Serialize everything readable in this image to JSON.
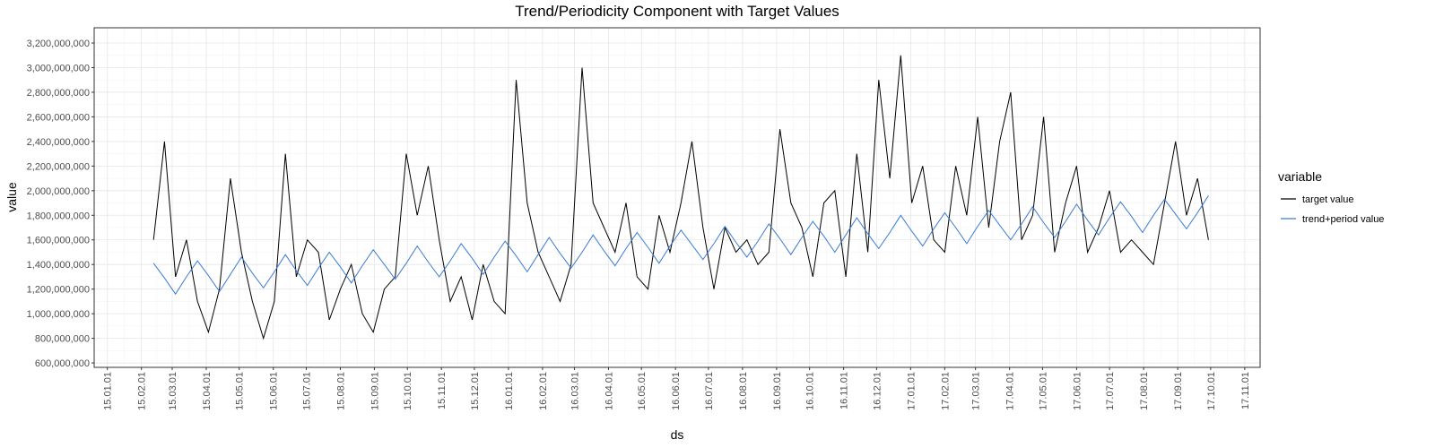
{
  "chart_data": {
    "type": "line",
    "title": "Trend/Periodicity Component with Target Values",
    "x_label": "ds",
    "y_label": "value",
    "legend_title": "variable",
    "legend": "right",
    "grid": true,
    "x": [
      "2015-02-12",
      "2015-02-22",
      "2015-03-04",
      "2015-03-14",
      "2015-03-24",
      "2015-04-03",
      "2015-04-13",
      "2015-04-23",
      "2015-05-03",
      "2015-05-13",
      "2015-05-23",
      "2015-06-02",
      "2015-06-12",
      "2015-06-22",
      "2015-07-02",
      "2015-07-12",
      "2015-07-22",
      "2015-08-01",
      "2015-08-11",
      "2015-08-21",
      "2015-08-31",
      "2015-09-10",
      "2015-09-20",
      "2015-09-30",
      "2015-10-10",
      "2015-10-20",
      "2015-10-30",
      "2015-11-09",
      "2015-11-19",
      "2015-11-29",
      "2015-12-09",
      "2015-12-19",
      "2015-12-29",
      "2016-01-08",
      "2016-01-18",
      "2016-01-28",
      "2016-02-07",
      "2016-02-17",
      "2016-02-27",
      "2016-03-08",
      "2016-03-18",
      "2016-03-28",
      "2016-04-07",
      "2016-04-17",
      "2016-04-27",
      "2016-05-07",
      "2016-05-17",
      "2016-05-27",
      "2016-06-06",
      "2016-06-16",
      "2016-06-26",
      "2016-07-06",
      "2016-07-16",
      "2016-07-26",
      "2016-08-05",
      "2016-08-15",
      "2016-08-25",
      "2016-09-04",
      "2016-09-14",
      "2016-09-24",
      "2016-10-04",
      "2016-10-14",
      "2016-10-24",
      "2016-11-03",
      "2016-11-13",
      "2016-11-23",
      "2016-12-03",
      "2016-12-13",
      "2016-12-23",
      "2017-01-02",
      "2017-01-12",
      "2017-01-22",
      "2017-02-01",
      "2017-02-11",
      "2017-02-21",
      "2017-03-03",
      "2017-03-13",
      "2017-03-23",
      "2017-04-02",
      "2017-04-12",
      "2017-04-22",
      "2017-05-02",
      "2017-05-12",
      "2017-05-22",
      "2017-06-01",
      "2017-06-11",
      "2017-06-21",
      "2017-07-01",
      "2017-07-11",
      "2017-07-21",
      "2017-07-31",
      "2017-08-10",
      "2017-08-20",
      "2017-08-30",
      "2017-09-09",
      "2017-09-19",
      "2017-09-29"
    ],
    "series": [
      {
        "name": "target value",
        "color": "#000000",
        "values": [
          1600000000,
          2400000000,
          1300000000,
          1600000000,
          1100000000,
          850000000,
          1200000000,
          2100000000,
          1500000000,
          1100000000,
          800000000,
          1100000000,
          2300000000,
          1300000000,
          1600000000,
          1500000000,
          950000000,
          1200000000,
          1400000000,
          1000000000,
          850000000,
          1200000000,
          1300000000,
          2300000000,
          1800000000,
          2200000000,
          1600000000,
          1100000000,
          1300000000,
          950000000,
          1400000000,
          1100000000,
          1000000000,
          2900000000,
          1900000000,
          1500000000,
          1300000000,
          1100000000,
          1400000000,
          3000000000,
          1900000000,
          1700000000,
          1500000000,
          1900000000,
          1300000000,
          1200000000,
          1800000000,
          1500000000,
          1900000000,
          2400000000,
          1700000000,
          1200000000,
          1700000000,
          1500000000,
          1600000000,
          1400000000,
          1500000000,
          2500000000,
          1900000000,
          1700000000,
          1300000000,
          1900000000,
          2000000000,
          1300000000,
          2300000000,
          1500000000,
          2900000000,
          2100000000,
          3100000000,
          1900000000,
          2200000000,
          1600000000,
          1500000000,
          2200000000,
          1800000000,
          2600000000,
          1700000000,
          2400000000,
          2800000000,
          1600000000,
          1800000000,
          2600000000,
          1500000000,
          1900000000,
          2200000000,
          1500000000,
          1700000000,
          2000000000,
          1500000000,
          1600000000,
          1500000000,
          1400000000,
          1900000000,
          2400000000,
          1800000000,
          2100000000,
          1600000000
        ]
      },
      {
        "name": "trend+period value",
        "color": "#3a7bd5",
        "values": [
          1410000000,
          1290000000,
          1160000000,
          1300000000,
          1430000000,
          1310000000,
          1180000000,
          1320000000,
          1460000000,
          1330000000,
          1210000000,
          1340000000,
          1480000000,
          1350000000,
          1230000000,
          1370000000,
          1500000000,
          1380000000,
          1250000000,
          1390000000,
          1520000000,
          1400000000,
          1280000000,
          1410000000,
          1550000000,
          1420000000,
          1300000000,
          1430000000,
          1570000000,
          1450000000,
          1320000000,
          1460000000,
          1590000000,
          1470000000,
          1340000000,
          1480000000,
          1620000000,
          1490000000,
          1370000000,
          1500000000,
          1640000000,
          1510000000,
          1390000000,
          1530000000,
          1660000000,
          1540000000,
          1410000000,
          1550000000,
          1680000000,
          1560000000,
          1440000000,
          1570000000,
          1710000000,
          1580000000,
          1460000000,
          1590000000,
          1730000000,
          1610000000,
          1480000000,
          1620000000,
          1750000000,
          1630000000,
          1500000000,
          1640000000,
          1780000000,
          1650000000,
          1530000000,
          1660000000,
          1800000000,
          1670000000,
          1550000000,
          1690000000,
          1820000000,
          1700000000,
          1570000000,
          1710000000,
          1840000000,
          1720000000,
          1600000000,
          1730000000,
          1870000000,
          1740000000,
          1620000000,
          1750000000,
          1890000000,
          1760000000,
          1640000000,
          1780000000,
          1910000000,
          1790000000,
          1660000000,
          1800000000,
          1930000000,
          1810000000,
          1690000000,
          1820000000,
          1960000000
        ]
      }
    ],
    "xlim": [
      "2014-12-20",
      "2017-11-15"
    ],
    "xticks": [
      {
        "value": "2015-01-01",
        "label": "15.01.01"
      },
      {
        "value": "2015-02-01",
        "label": "15.02.01"
      },
      {
        "value": "2015-03-01",
        "label": "15.03.01"
      },
      {
        "value": "2015-04-01",
        "label": "15.04.01"
      },
      {
        "value": "2015-05-01",
        "label": "15.05.01"
      },
      {
        "value": "2015-06-01",
        "label": "15.06.01"
      },
      {
        "value": "2015-07-01",
        "label": "15.07.01"
      },
      {
        "value": "2015-08-01",
        "label": "15.08.01"
      },
      {
        "value": "2015-09-01",
        "label": "15.09.01"
      },
      {
        "value": "2015-10-01",
        "label": "15.10.01"
      },
      {
        "value": "2015-11-01",
        "label": "15.11.01"
      },
      {
        "value": "2015-12-01",
        "label": "15.12.01"
      },
      {
        "value": "2016-01-01",
        "label": "16.01.01"
      },
      {
        "value": "2016-02-01",
        "label": "16.02.01"
      },
      {
        "value": "2016-03-01",
        "label": "16.03.01"
      },
      {
        "value": "2016-04-01",
        "label": "16.04.01"
      },
      {
        "value": "2016-05-01",
        "label": "16.05.01"
      },
      {
        "value": "2016-06-01",
        "label": "16.06.01"
      },
      {
        "value": "2016-07-01",
        "label": "16.07.01"
      },
      {
        "value": "2016-08-01",
        "label": "16.08.01"
      },
      {
        "value": "2016-09-01",
        "label": "16.09.01"
      },
      {
        "value": "2016-10-01",
        "label": "16.10.01"
      },
      {
        "value": "2016-11-01",
        "label": "16.11.01"
      },
      {
        "value": "2016-12-01",
        "label": "16.12.01"
      },
      {
        "value": "2017-01-01",
        "label": "17.01.01"
      },
      {
        "value": "2017-02-01",
        "label": "17.02.01"
      },
      {
        "value": "2017-03-01",
        "label": "17.03.01"
      },
      {
        "value": "2017-04-01",
        "label": "17.04.01"
      },
      {
        "value": "2017-05-01",
        "label": "17.05.01"
      },
      {
        "value": "2017-06-01",
        "label": "17.06.01"
      },
      {
        "value": "2017-07-01",
        "label": "17.07.01"
      },
      {
        "value": "2017-08-01",
        "label": "17.08.01"
      },
      {
        "value": "2017-09-01",
        "label": "17.09.01"
      },
      {
        "value": "2017-10-01",
        "label": "17.10.01"
      },
      {
        "value": "2017-11-01",
        "label": "17.11.01"
      }
    ],
    "ylim": [
      564000000,
      3324000000
    ],
    "yticks": [
      {
        "value": 600000000,
        "label": "600,000,000"
      },
      {
        "value": 800000000,
        "label": "800,000,000"
      },
      {
        "value": 1000000000,
        "label": "1,000,000,000"
      },
      {
        "value": 1200000000,
        "label": "1,200,000,000"
      },
      {
        "value": 1400000000,
        "label": "1,400,000,000"
      },
      {
        "value": 1600000000,
        "label": "1,600,000,000"
      },
      {
        "value": 1800000000,
        "label": "1,800,000,000"
      },
      {
        "value": 2000000000,
        "label": "2,000,000,000"
      },
      {
        "value": 2200000000,
        "label": "2,200,000,000"
      },
      {
        "value": 2400000000,
        "label": "2,400,000,000"
      },
      {
        "value": 2600000000,
        "label": "2,600,000,000"
      },
      {
        "value": 2800000000,
        "label": "2,800,000,000"
      },
      {
        "value": 3000000000,
        "label": "3,000,000,000"
      },
      {
        "value": 3200000000,
        "label": "3,200,000,000"
      }
    ]
  }
}
